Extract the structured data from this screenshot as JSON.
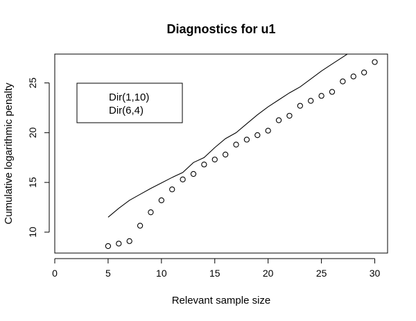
{
  "chart_data": {
    "type": "line",
    "title": "Diagnostics for u1",
    "xlabel": "Relevant sample size",
    "ylabel": "Cumulative logarithmic penalty",
    "xlim": [
      0,
      31.2
    ],
    "ylim": [
      7.9,
      27.9
    ],
    "x_ticks": [
      0,
      5,
      10,
      15,
      20,
      25,
      30
    ],
    "y_ticks": [
      10,
      15,
      20,
      25
    ],
    "legend": {
      "placement": "top-left",
      "entries": [
        "Dir(1,10)",
        "Dir(6,4)"
      ]
    },
    "series": [
      {
        "name": "Dir(1,10)",
        "style": "line",
        "x": [
          5,
          6,
          7,
          8,
          9,
          10,
          11,
          12,
          13,
          14,
          15,
          16,
          17,
          18,
          19,
          20,
          21,
          22,
          23,
          24,
          25,
          26,
          27,
          28
        ],
        "y": [
          11.5,
          12.4,
          13.2,
          13.8,
          14.4,
          14.95,
          15.5,
          16.0,
          17.0,
          17.5,
          18.5,
          19.4,
          20.0,
          20.9,
          21.8,
          22.6,
          23.3,
          24.0,
          24.6,
          25.4,
          26.2,
          26.9,
          27.6,
          28.3
        ]
      },
      {
        "name": "Dir(6,4)",
        "style": "points",
        "x": [
          5,
          6,
          7,
          8,
          9,
          10,
          11,
          12,
          13,
          14,
          15,
          16,
          17,
          18,
          19,
          20,
          21,
          22,
          23,
          24,
          25,
          26,
          27,
          28,
          29,
          30
        ],
        "y": [
          8.6,
          8.85,
          9.1,
          10.65,
          12.0,
          13.2,
          14.3,
          15.3,
          15.85,
          16.8,
          17.3,
          17.8,
          18.8,
          19.3,
          19.75,
          20.2,
          21.25,
          21.7,
          22.7,
          23.2,
          23.7,
          24.1,
          25.15,
          25.65,
          26.05,
          27.1
        ]
      }
    ]
  }
}
